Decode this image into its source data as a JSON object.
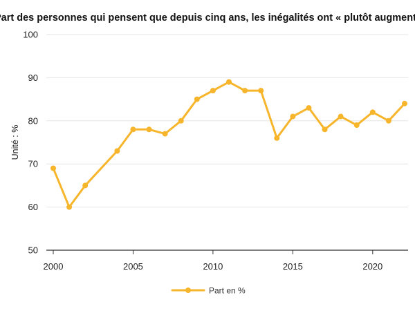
{
  "chart_data": {
    "type": "line",
    "title": "Part des personnes qui pensent que depuis cinq ans, les inégalités ont « plutôt augmenté »",
    "xlabel": "",
    "ylabel": "Unité : %",
    "xlim": [
      2000,
      2022
    ],
    "ylim": [
      50,
      100
    ],
    "x_ticks": [
      2000,
      2005,
      2010,
      2015,
      2020
    ],
    "y_ticks": [
      50,
      60,
      70,
      80,
      90,
      100
    ],
    "grid": "horizontal",
    "legend_position": "bottom-center",
    "x": [
      2000,
      2001,
      2002,
      2004,
      2005,
      2006,
      2007,
      2008,
      2009,
      2010,
      2011,
      2012,
      2013,
      2014,
      2015,
      2016,
      2017,
      2018,
      2019,
      2020,
      2021,
      2022
    ],
    "series": [
      {
        "name": "Part en %",
        "color": "#F7B52C",
        "values": [
          69,
          60,
          65,
          73,
          78,
          78,
          77,
          80,
          85,
          87,
          89,
          87,
          87,
          76,
          81,
          83,
          78,
          81,
          79,
          82,
          80,
          84
        ]
      }
    ]
  }
}
